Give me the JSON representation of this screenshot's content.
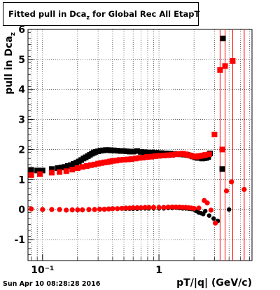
{
  "title": {
    "pre": "Fitted pull in Dca",
    "sub": "z",
    "post": " for Global Rec All EtapT"
  },
  "footer": "Sun Apr 10 08:28:28 2016",
  "chart_data": {
    "type": "scatter",
    "title": "Fitted pull in Dca_z for Global Rec All EtapT",
    "xlabel": "pT/|q| (GeV/c)",
    "ylabel": "pull in Dca_z",
    "x_scale": "log",
    "xlim": [
      0.075,
      6.3
    ],
    "ylim": [
      -1.7,
      6.0
    ],
    "grid": true,
    "y_ticks": [
      -1,
      0,
      1,
      2,
      3,
      4,
      5,
      6
    ],
    "x_ticks": [
      0.1,
      1
    ],
    "x_tick_labels": [
      "10⁻¹",
      "1"
    ],
    "colors": {
      "black": "#000000",
      "red": "#ff0000",
      "axis": "#000000",
      "grid": "#000000"
    },
    "series": [
      {
        "name": "",
        "color": "#000000",
        "points": [
          {
            "x": 0.08,
            "y": 1.32
          },
          {
            "x": 0.09,
            "y": 1.3
          },
          {
            "x": 0.1,
            "y": 1.3
          },
          {
            "x": 0.12,
            "y": 1.35
          },
          {
            "x": 0.135,
            "y": 1.38
          },
          {
            "x": 0.145,
            "y": 1.4
          },
          {
            "x": 0.155,
            "y": 1.42
          },
          {
            "x": 0.165,
            "y": 1.45
          },
          {
            "x": 0.175,
            "y": 1.48
          },
          {
            "x": 0.185,
            "y": 1.52
          },
          {
            "x": 0.195,
            "y": 1.56
          },
          {
            "x": 0.205,
            "y": 1.6
          },
          {
            "x": 0.215,
            "y": 1.65
          },
          {
            "x": 0.225,
            "y": 1.7
          },
          {
            "x": 0.235,
            "y": 1.74
          },
          {
            "x": 0.245,
            "y": 1.78
          },
          {
            "x": 0.255,
            "y": 1.82
          },
          {
            "x": 0.265,
            "y": 1.86
          },
          {
            "x": 0.275,
            "y": 1.89
          },
          {
            "x": 0.285,
            "y": 1.92
          },
          {
            "x": 0.3,
            "y": 1.94
          },
          {
            "x": 0.315,
            "y": 1.96
          },
          {
            "x": 0.33,
            "y": 1.97
          },
          {
            "x": 0.35,
            "y": 1.98
          },
          {
            "x": 0.37,
            "y": 1.98
          },
          {
            "x": 0.39,
            "y": 1.97
          },
          {
            "x": 0.41,
            "y": 1.97
          },
          {
            "x": 0.44,
            "y": 1.96
          },
          {
            "x": 0.47,
            "y": 1.95
          },
          {
            "x": 0.5,
            "y": 1.95
          },
          {
            "x": 0.53,
            "y": 1.94
          },
          {
            "x": 0.56,
            "y": 1.93
          },
          {
            "x": 0.6,
            "y": 1.93
          },
          {
            "x": 0.65,
            "y": 1.95
          },
          {
            "x": 0.7,
            "y": 1.92
          },
          {
            "x": 0.75,
            "y": 1.91
          },
          {
            "x": 0.8,
            "y": 1.9
          },
          {
            "x": 0.87,
            "y": 1.9
          },
          {
            "x": 0.95,
            "y": 1.89
          },
          {
            "x": 1.05,
            "y": 1.88
          },
          {
            "x": 1.15,
            "y": 1.87
          },
          {
            "x": 1.25,
            "y": 1.86
          },
          {
            "x": 1.35,
            "y": 1.85
          },
          {
            "x": 1.45,
            "y": 1.85
          },
          {
            "x": 1.55,
            "y": 1.84
          },
          {
            "x": 1.65,
            "y": 1.83
          },
          {
            "x": 1.75,
            "y": 1.82
          },
          {
            "x": 1.85,
            "y": 1.8
          },
          {
            "x": 1.95,
            "y": 1.77
          },
          {
            "x": 2.05,
            "y": 1.74
          },
          {
            "x": 2.15,
            "y": 1.72
          },
          {
            "x": 2.25,
            "y": 1.72
          },
          {
            "x": 2.35,
            "y": 1.7
          },
          {
            "x": 2.45,
            "y": 1.71
          },
          {
            "x": 2.55,
            "y": 1.72
          },
          {
            "x": 2.65,
            "y": 1.75
          },
          {
            "x": 2.75,
            "y": 1.87
          },
          {
            "x": 3.55,
            "y": 5.7
          },
          {
            "x": 3.5,
            "y": 1.35
          },
          {
            "x": 4.0,
            "y": 0.0
          },
          {
            "x": 0.08,
            "y": 0.02
          },
          {
            "x": 0.1,
            "y": 0.0
          },
          {
            "x": 0.12,
            "y": 0.0
          },
          {
            "x": 0.14,
            "y": 0.0
          },
          {
            "x": 0.16,
            "y": -0.02
          },
          {
            "x": 0.18,
            "y": -0.02
          },
          {
            "x": 0.2,
            "y": -0.02
          },
          {
            "x": 0.22,
            "y": -0.02
          },
          {
            "x": 0.25,
            "y": -0.01
          },
          {
            "x": 0.28,
            "y": 0.0
          },
          {
            "x": 0.31,
            "y": 0.0
          },
          {
            "x": 0.34,
            "y": 0.0
          },
          {
            "x": 0.37,
            "y": 0.02
          },
          {
            "x": 0.4,
            "y": 0.02
          },
          {
            "x": 0.44,
            "y": 0.03
          },
          {
            "x": 0.48,
            "y": 0.04
          },
          {
            "x": 0.52,
            "y": 0.03
          },
          {
            "x": 0.56,
            "y": 0.03
          },
          {
            "x": 0.6,
            "y": 0.03
          },
          {
            "x": 0.65,
            "y": 0.03
          },
          {
            "x": 0.7,
            "y": 0.04
          },
          {
            "x": 0.76,
            "y": 0.04
          },
          {
            "x": 0.82,
            "y": 0.04
          },
          {
            "x": 0.9,
            "y": 0.04
          },
          {
            "x": 1.0,
            "y": 0.04
          },
          {
            "x": 1.1,
            "y": 0.04
          },
          {
            "x": 1.2,
            "y": 0.05
          },
          {
            "x": 1.3,
            "y": 0.05
          },
          {
            "x": 1.4,
            "y": 0.06
          },
          {
            "x": 1.5,
            "y": 0.05
          },
          {
            "x": 1.6,
            "y": 0.04
          },
          {
            "x": 1.7,
            "y": 0.04
          },
          {
            "x": 1.8,
            "y": 0.03
          },
          {
            "x": 1.9,
            "y": 0.02
          },
          {
            "x": 2.0,
            "y": 0.0
          },
          {
            "x": 2.1,
            "y": -0.05
          },
          {
            "x": 2.2,
            "y": -0.1
          },
          {
            "x": 2.3,
            "y": -0.12
          },
          {
            "x": 2.4,
            "y": -0.15
          },
          {
            "x": 2.5,
            "y": -0.05
          },
          {
            "x": 2.7,
            "y": -0.2
          },
          {
            "x": 2.95,
            "y": -0.3
          },
          {
            "x": 3.2,
            "y": -0.38
          }
        ]
      },
      {
        "name": "",
        "color": "#ff0000",
        "points": [
          {
            "x": 0.08,
            "y": 1.15
          },
          {
            "x": 0.095,
            "y": 1.18
          },
          {
            "x": 0.12,
            "y": 1.23
          },
          {
            "x": 0.14,
            "y": 1.25
          },
          {
            "x": 0.16,
            "y": 1.28
          },
          {
            "x": 0.18,
            "y": 1.33
          },
          {
            "x": 0.2,
            "y": 1.38
          },
          {
            "x": 0.22,
            "y": 1.42
          },
          {
            "x": 0.24,
            "y": 1.45
          },
          {
            "x": 0.26,
            "y": 1.48
          },
          {
            "x": 0.28,
            "y": 1.5
          },
          {
            "x": 0.3,
            "y": 1.53
          },
          {
            "x": 0.32,
            "y": 1.55
          },
          {
            "x": 0.34,
            "y": 1.57
          },
          {
            "x": 0.36,
            "y": 1.58
          },
          {
            "x": 0.38,
            "y": 1.6
          },
          {
            "x": 0.4,
            "y": 1.62
          },
          {
            "x": 0.43,
            "y": 1.63
          },
          {
            "x": 0.46,
            "y": 1.65
          },
          {
            "x": 0.5,
            "y": 1.66
          },
          {
            "x": 0.54,
            "y": 1.67
          },
          {
            "x": 0.58,
            "y": 1.68
          },
          {
            "x": 0.63,
            "y": 1.7
          },
          {
            "x": 0.68,
            "y": 1.72
          },
          {
            "x": 0.73,
            "y": 1.73
          },
          {
            "x": 0.79,
            "y": 1.75
          },
          {
            "x": 0.86,
            "y": 1.76
          },
          {
            "x": 0.93,
            "y": 1.78
          },
          {
            "x": 1.0,
            "y": 1.79
          },
          {
            "x": 1.1,
            "y": 1.8
          },
          {
            "x": 1.2,
            "y": 1.81
          },
          {
            "x": 1.3,
            "y": 1.82
          },
          {
            "x": 1.4,
            "y": 1.84
          },
          {
            "x": 1.5,
            "y": 1.85
          },
          {
            "x": 1.6,
            "y": 1.86
          },
          {
            "x": 1.7,
            "y": 1.84
          },
          {
            "x": 1.8,
            "y": 1.81
          },
          {
            "x": 1.9,
            "y": 1.79
          },
          {
            "x": 2.0,
            "y": 1.77
          },
          {
            "x": 2.1,
            "y": 1.76
          },
          {
            "x": 2.2,
            "y": 1.78
          },
          {
            "x": 2.3,
            "y": 1.79
          },
          {
            "x": 2.4,
            "y": 1.8
          },
          {
            "x": 2.5,
            "y": 1.82
          },
          {
            "x": 2.7,
            "y": 1.84
          },
          {
            "x": 3.0,
            "y": 2.5
          },
          {
            "x": 3.35,
            "y": 4.65
          },
          {
            "x": 3.7,
            "y": 4.78
          },
          {
            "x": 4.3,
            "y": 4.95
          },
          {
            "x": 3.5,
            "y": 2.0
          },
          {
            "x": 3.8,
            "y": 0.62
          },
          {
            "x": 4.2,
            "y": 0.92
          },
          {
            "x": 5.4,
            "y": 0.67
          },
          {
            "x": 0.08,
            "y": 0.02
          },
          {
            "x": 0.1,
            "y": 0.0
          },
          {
            "x": 0.12,
            "y": 0.0
          },
          {
            "x": 0.14,
            "y": 0.0
          },
          {
            "x": 0.16,
            "y": -0.02
          },
          {
            "x": 0.18,
            "y": -0.01
          },
          {
            "x": 0.2,
            "y": -0.01
          },
          {
            "x": 0.22,
            "y": -0.01
          },
          {
            "x": 0.25,
            "y": 0.0
          },
          {
            "x": 0.28,
            "y": 0.0
          },
          {
            "x": 0.31,
            "y": 0.01
          },
          {
            "x": 0.34,
            "y": 0.01
          },
          {
            "x": 0.37,
            "y": 0.02
          },
          {
            "x": 0.4,
            "y": 0.03
          },
          {
            "x": 0.44,
            "y": 0.03
          },
          {
            "x": 0.48,
            "y": 0.04
          },
          {
            "x": 0.52,
            "y": 0.05
          },
          {
            "x": 0.56,
            "y": 0.05
          },
          {
            "x": 0.6,
            "y": 0.06
          },
          {
            "x": 0.65,
            "y": 0.06
          },
          {
            "x": 0.7,
            "y": 0.06
          },
          {
            "x": 0.76,
            "y": 0.07
          },
          {
            "x": 0.82,
            "y": 0.07
          },
          {
            "x": 0.9,
            "y": 0.07
          },
          {
            "x": 1.0,
            "y": 0.07
          },
          {
            "x": 1.1,
            "y": 0.07
          },
          {
            "x": 1.2,
            "y": 0.08
          },
          {
            "x": 1.3,
            "y": 0.08
          },
          {
            "x": 1.4,
            "y": 0.08
          },
          {
            "x": 1.5,
            "y": 0.08
          },
          {
            "x": 1.6,
            "y": 0.07
          },
          {
            "x": 1.7,
            "y": 0.07
          },
          {
            "x": 1.8,
            "y": 0.06
          },
          {
            "x": 1.9,
            "y": 0.05
          },
          {
            "x": 2.0,
            "y": 0.04
          },
          {
            "x": 2.2,
            "y": 0.05
          },
          {
            "x": 2.45,
            "y": 0.3
          },
          {
            "x": 2.6,
            "y": 0.22
          },
          {
            "x": 2.8,
            "y": -0.02
          },
          {
            "x": 3.05,
            "y": -0.45
          }
        ]
      }
    ],
    "red_error_bars": [
      {
        "x": 3.35,
        "ylo": -1.7,
        "yhi": 6.0
      },
      {
        "x": 3.7,
        "ylo": -1.7,
        "yhi": 6.0
      },
      {
        "x": 4.3,
        "ylo": -1.7,
        "yhi": 6.0
      },
      {
        "x": 5.4,
        "ylo": -1.7,
        "yhi": 6.0
      }
    ]
  }
}
